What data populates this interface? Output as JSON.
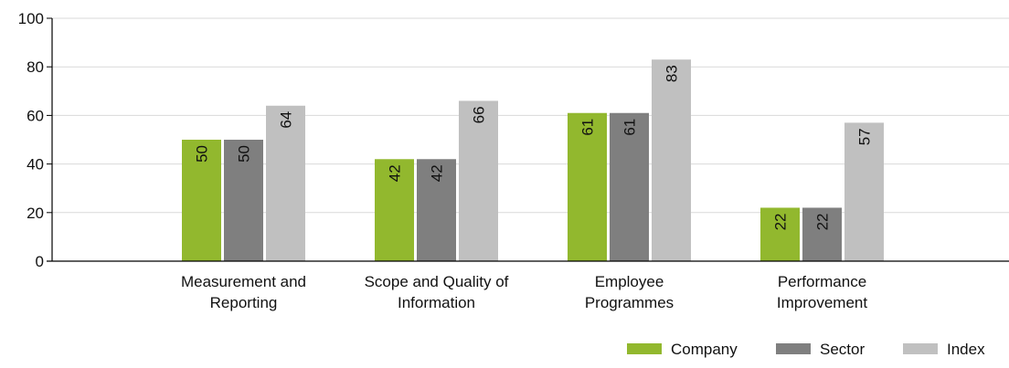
{
  "chart_data": {
    "type": "bar",
    "categories": [
      [
        "Measurement and",
        "Reporting"
      ],
      [
        "Scope and Quality of",
        "Information"
      ],
      [
        "Employee",
        "Programmes"
      ],
      [
        "Performance",
        "Improvement"
      ]
    ],
    "series": [
      {
        "name": "Company",
        "color": "#92b82e",
        "values": [
          50,
          42,
          61,
          22
        ],
        "labels": [
          "50",
          "42",
          "61",
          "22"
        ]
      },
      {
        "name": "Sector",
        "color": "#7f7f7f",
        "values": [
          50,
          42,
          61,
          22
        ],
        "labels": [
          "50",
          "42",
          "61",
          "22"
        ]
      },
      {
        "name": "Index",
        "color": "#c0c0c0",
        "values": [
          64,
          66,
          83,
          57
        ],
        "labels": [
          "64",
          "66",
          "83",
          "57"
        ]
      }
    ],
    "yticks": [
      0,
      20,
      40,
      60,
      80,
      100
    ],
    "ytick_labels": [
      "0",
      "20",
      "40",
      "60",
      "80",
      "100"
    ],
    "ylim": [
      0,
      100
    ],
    "grid": true,
    "legend_position": "bottom-right",
    "data_label_orientation": "vertical"
  }
}
